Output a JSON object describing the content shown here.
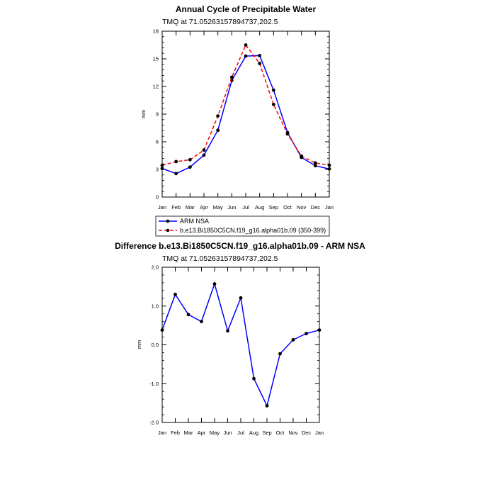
{
  "chart_data": [
    {
      "type": "line",
      "title": "Annual Cycle of Precipitable Water",
      "subtitle": "TMQ at 71.05263157894737,202.5",
      "xlabel": "",
      "ylabel": "mm",
      "categories": [
        "Jan",
        "Feb",
        "Mar",
        "Apr",
        "May",
        "Jun",
        "Jul",
        "Aug",
        "Sep",
        "Oct",
        "Nov",
        "Dec",
        "Jan"
      ],
      "ylim": [
        0,
        18
      ],
      "yticks": [
        0,
        3,
        6,
        9,
        12,
        15,
        18
      ],
      "ytick_labels": [
        "0",
        "3",
        "6",
        "9",
        "12",
        "15",
        "18"
      ],
      "grid": false,
      "legend_position": "below",
      "series": [
        {
          "name": "ARM NSA",
          "color": "#0000ff",
          "dash": "solid",
          "values": [
            3.1,
            2.55,
            3.25,
            4.55,
            7.25,
            12.65,
            15.3,
            15.35,
            11.6,
            7.0,
            4.3,
            3.4,
            3.05
          ]
        },
        {
          "name": "b.e13.Bi1850C5CN.f19_g16.alpha01b.09 (350-399)",
          "color": "#ff0000",
          "dash": "dashed",
          "values": [
            3.45,
            3.85,
            4.05,
            5.1,
            8.8,
            13.0,
            16.5,
            14.5,
            10.05,
            6.85,
            4.45,
            3.7,
            3.45
          ]
        }
      ]
    },
    {
      "type": "line",
      "title": "Difference b.e13.Bi1850C5CN.f19_g16.alpha01b.09 - ARM NSA",
      "subtitle": "TMQ at 71.05263157894737,202.5",
      "xlabel": "",
      "ylabel": "mm",
      "categories": [
        "Jan",
        "Feb",
        "Mar",
        "Apr",
        "May",
        "Jun",
        "Jul",
        "Aug",
        "Sep",
        "Oct",
        "Nov",
        "Dec",
        "Jan"
      ],
      "ylim": [
        -2.0,
        2.0
      ],
      "yticks": [
        -2.0,
        -1.0,
        0.0,
        1.0,
        2.0
      ],
      "ytick_labels": [
        "-2.0",
        "-1.0",
        "0.0",
        "1.0",
        "2.0"
      ],
      "grid": false,
      "series": [
        {
          "name": "Difference",
          "color": "#0000ff",
          "dash": "solid",
          "values": [
            0.38,
            1.3,
            0.78,
            0.6,
            1.57,
            0.36,
            1.21,
            -0.87,
            -1.57,
            -0.23,
            0.13,
            0.29,
            0.38
          ]
        }
      ]
    }
  ]
}
